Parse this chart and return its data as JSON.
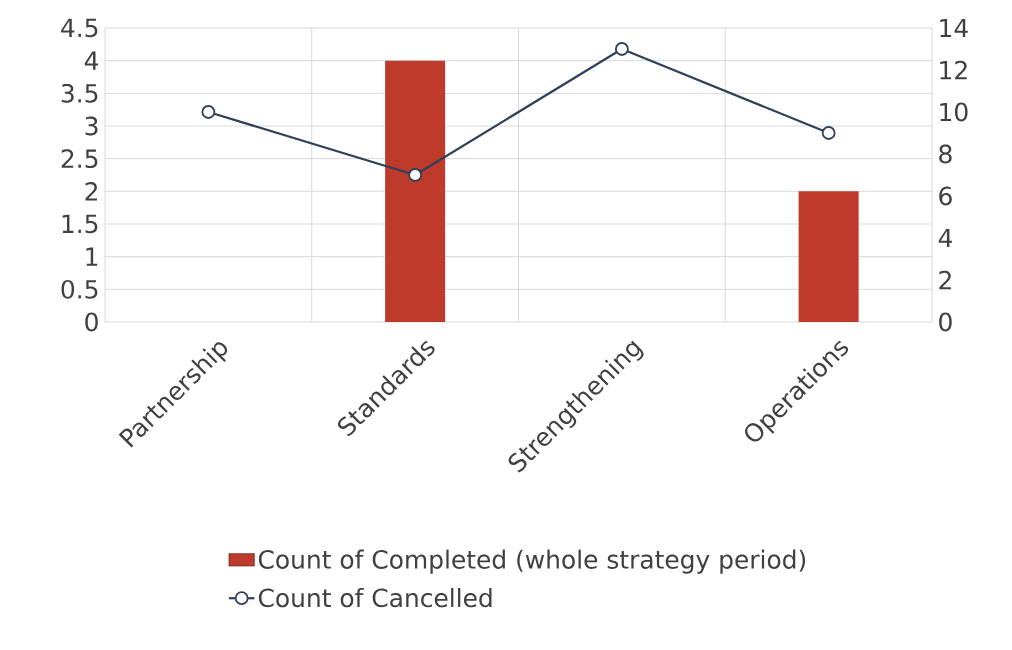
{
  "chart_data": {
    "type": "bar",
    "categories": [
      "Partnership",
      "Standards",
      "Strengthening",
      "Operations"
    ],
    "series": [
      {
        "name": "Count of Completed (whole strategy period)",
        "color": "#be3a2a",
        "values": [
          0,
          4,
          0,
          2
        ]
      },
      {
        "name": "Count of Cancelled",
        "type": "line",
        "axis": "y2",
        "color": "#2f4059",
        "values": [
          10,
          7,
          13,
          9
        ],
        "marker": "circle",
        "line_style": "solid"
      }
    ],
    "ylim": [
      0,
      4.5
    ],
    "yticks": [
      0,
      0.5,
      1,
      1.5,
      2,
      2.5,
      3,
      3.5,
      4,
      4.5
    ],
    "y2lim": [
      0,
      14
    ],
    "y2ticks": [
      0,
      2,
      4,
      6,
      8,
      10,
      12,
      14
    ],
    "grid": true,
    "legend": "bottom"
  }
}
